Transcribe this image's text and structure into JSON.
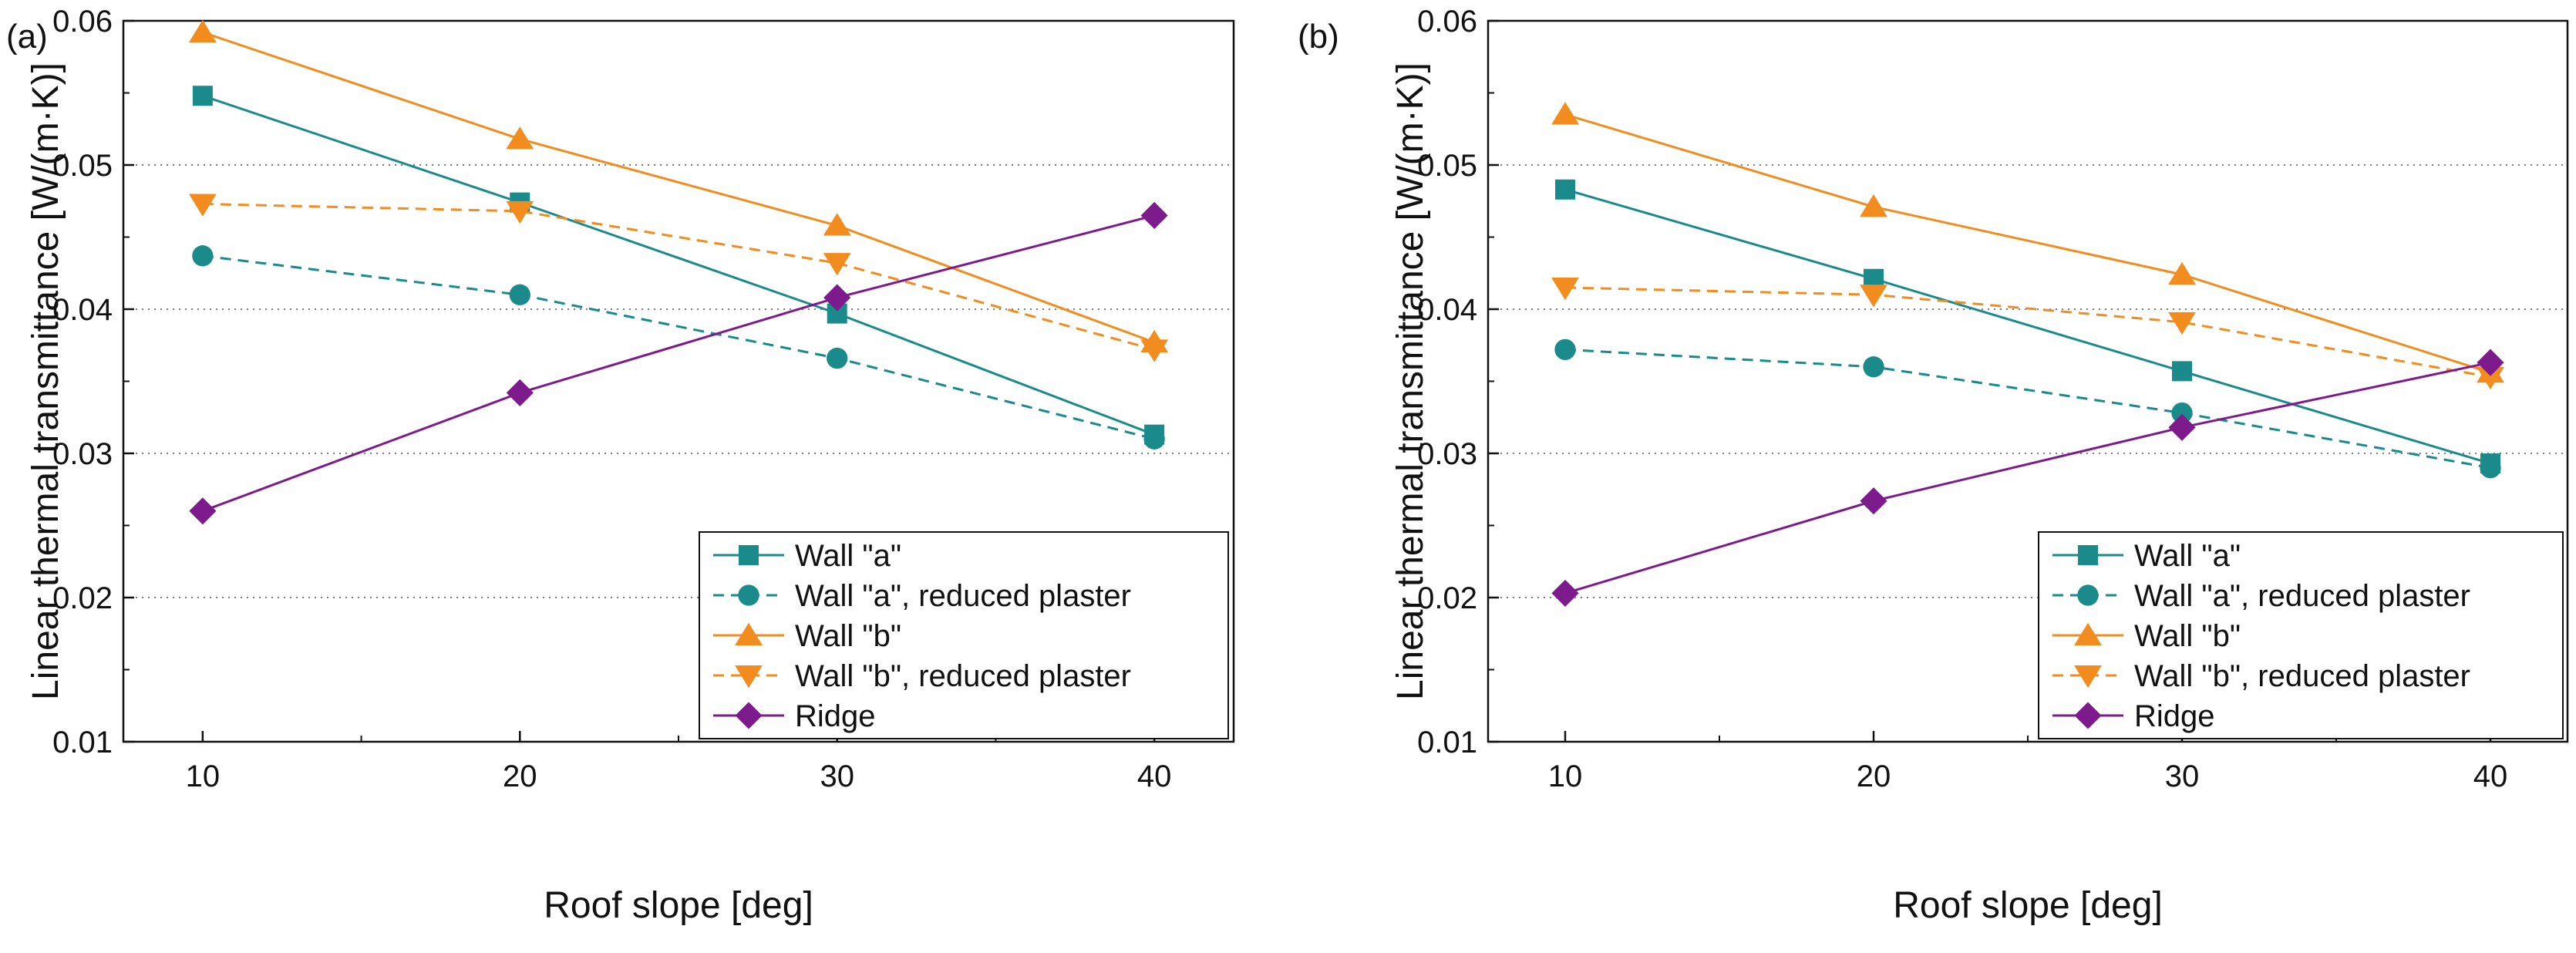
{
  "chart_data": [
    {
      "type": "line",
      "panel_label": "(a)",
      "xlabel": "Roof slope [deg]",
      "ylabel": "Linear thermal transmittance [W/(m·K)]",
      "xlim": [
        7.5,
        42.5
      ],
      "ylim": [
        0.01,
        0.06
      ],
      "xticks": [
        "10",
        "20",
        "30",
        "40"
      ],
      "xtick_values": [
        10,
        20,
        30,
        40
      ],
      "xminor_values": [
        15,
        25,
        35
      ],
      "yticks": [
        "0.01",
        "0.02",
        "0.03",
        "0.04",
        "0.05",
        "0.06"
      ],
      "ytick_values": [
        0.01,
        0.02,
        0.03,
        0.04,
        0.05,
        0.06
      ],
      "grid": "horizontal dotted",
      "legend_position": "bottom-right",
      "x": [
        10,
        20,
        30,
        40
      ],
      "series": [
        {
          "name": "Wall \"a\"",
          "color": "#1a8a8a",
          "marker": "square",
          "dash": "solid",
          "values": [
            0.0548,
            0.0474,
            0.0397,
            0.0313
          ]
        },
        {
          "name": "Wall \"a\", reduced plaster",
          "color": "#1a8a8a",
          "marker": "circle",
          "dash": "dashed",
          "values": [
            0.0437,
            0.041,
            0.0366,
            0.031
          ]
        },
        {
          "name": "Wall \"b\"",
          "color": "#f28c1f",
          "marker": "triangle-up",
          "dash": "solid",
          "values": [
            0.0592,
            0.0518,
            0.0458,
            0.0377
          ]
        },
        {
          "name": "Wall \"b\", reduced plaster",
          "color": "#f28c1f",
          "marker": "triangle-down",
          "dash": "dashed",
          "values": [
            0.0473,
            0.0468,
            0.0432,
            0.0372
          ]
        },
        {
          "name": "Ridge",
          "color": "#7d1a8c",
          "marker": "diamond",
          "dash": "solid",
          "values": [
            0.026,
            0.0342,
            0.0408,
            0.0465
          ]
        }
      ]
    },
    {
      "type": "line",
      "panel_label": "(b)",
      "xlabel": "Roof slope [deg]",
      "ylabel": "Linear thermal transmittance [W/(m·K)]",
      "xlim": [
        7.5,
        42.5
      ],
      "ylim": [
        0.01,
        0.06
      ],
      "xticks": [
        "10",
        "20",
        "30",
        "40"
      ],
      "xtick_values": [
        10,
        20,
        30,
        40
      ],
      "xminor_values": [
        15,
        25,
        35
      ],
      "yticks": [
        "0.01",
        "0.02",
        "0.03",
        "0.04",
        "0.05",
        "0.06"
      ],
      "ytick_values": [
        0.01,
        0.02,
        0.03,
        0.04,
        0.05,
        0.06
      ],
      "grid": "horizontal dotted",
      "legend_position": "bottom-right",
      "x": [
        10,
        20,
        30,
        40
      ],
      "series": [
        {
          "name": "Wall \"a\"",
          "color": "#1a8a8a",
          "marker": "square",
          "dash": "solid",
          "values": [
            0.0483,
            0.0421,
            0.0357,
            0.0293
          ]
        },
        {
          "name": "Wall \"a\", reduced plaster",
          "color": "#1a8a8a",
          "marker": "circle",
          "dash": "dashed",
          "values": [
            0.0372,
            0.036,
            0.0328,
            0.029
          ]
        },
        {
          "name": "Wall \"b\"",
          "color": "#f28c1f",
          "marker": "triangle-up",
          "dash": "solid",
          "values": [
            0.0535,
            0.0471,
            0.0424,
            0.0356
          ]
        },
        {
          "name": "Wall \"b\", reduced plaster",
          "color": "#f28c1f",
          "marker": "triangle-down",
          "dash": "dashed",
          "values": [
            0.0415,
            0.041,
            0.0391,
            0.0353
          ]
        },
        {
          "name": "Ridge",
          "color": "#7d1a8c",
          "marker": "diamond",
          "dash": "solid",
          "values": [
            0.0203,
            0.0267,
            0.0318,
            0.0363
          ]
        }
      ]
    }
  ]
}
